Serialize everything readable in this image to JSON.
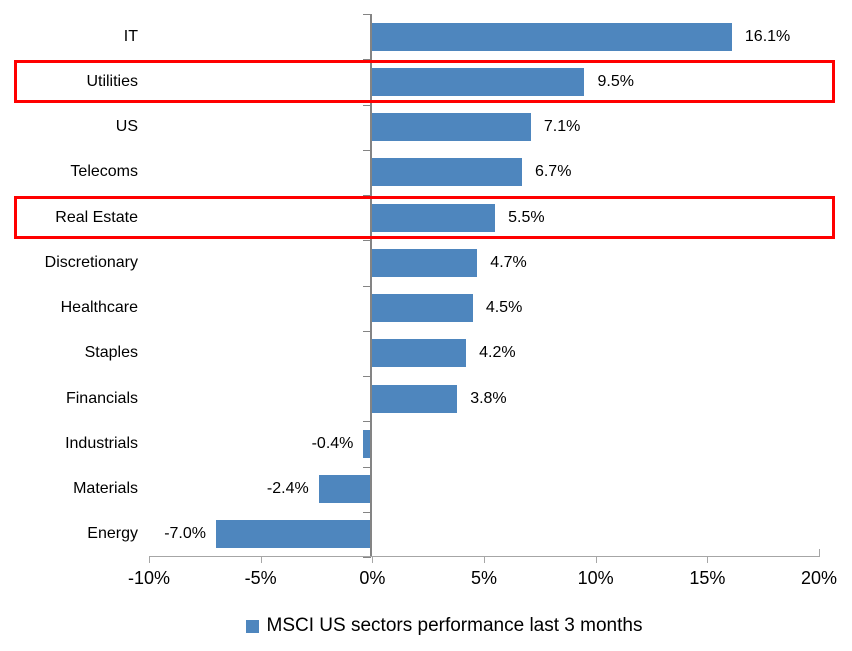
{
  "chart_data": {
    "type": "bar",
    "orientation": "horizontal",
    "categories": [
      "IT",
      "Utilities",
      "US",
      "Telecoms",
      "Real Estate",
      "Discretionary",
      "Healthcare",
      "Staples",
      "Financials",
      "Industrials",
      "Materials",
      "Energy"
    ],
    "values": [
      16.1,
      9.5,
      7.1,
      6.7,
      5.5,
      4.7,
      4.5,
      4.2,
      3.8,
      -0.4,
      -2.4,
      -7.0
    ],
    "data_labels": [
      "16.1%",
      "9.5%",
      "7.1%",
      "6.7%",
      "5.5%",
      "4.7%",
      "4.5%",
      "4.2%",
      "3.8%",
      "-0.4%",
      "-2.4%",
      "-7.0%"
    ],
    "highlighted_categories": [
      "Utilities",
      "Real Estate"
    ],
    "xlim": [
      -10,
      20
    ],
    "x_ticks": [
      -10,
      -5,
      0,
      5,
      10,
      15,
      20
    ],
    "x_tick_labels": [
      "-10%",
      "-5%",
      "0%",
      "5%",
      "10%",
      "15%",
      "20%"
    ],
    "legend": "MSCI US sectors performance last 3 months",
    "legend_position": "bottom",
    "grid": false,
    "bar_color": "#4E86BE",
    "highlight_box_color": "#FF0000",
    "axis_color": "#848484",
    "axis_line_color": "#A6A6A6",
    "text_color": "#000000"
  }
}
